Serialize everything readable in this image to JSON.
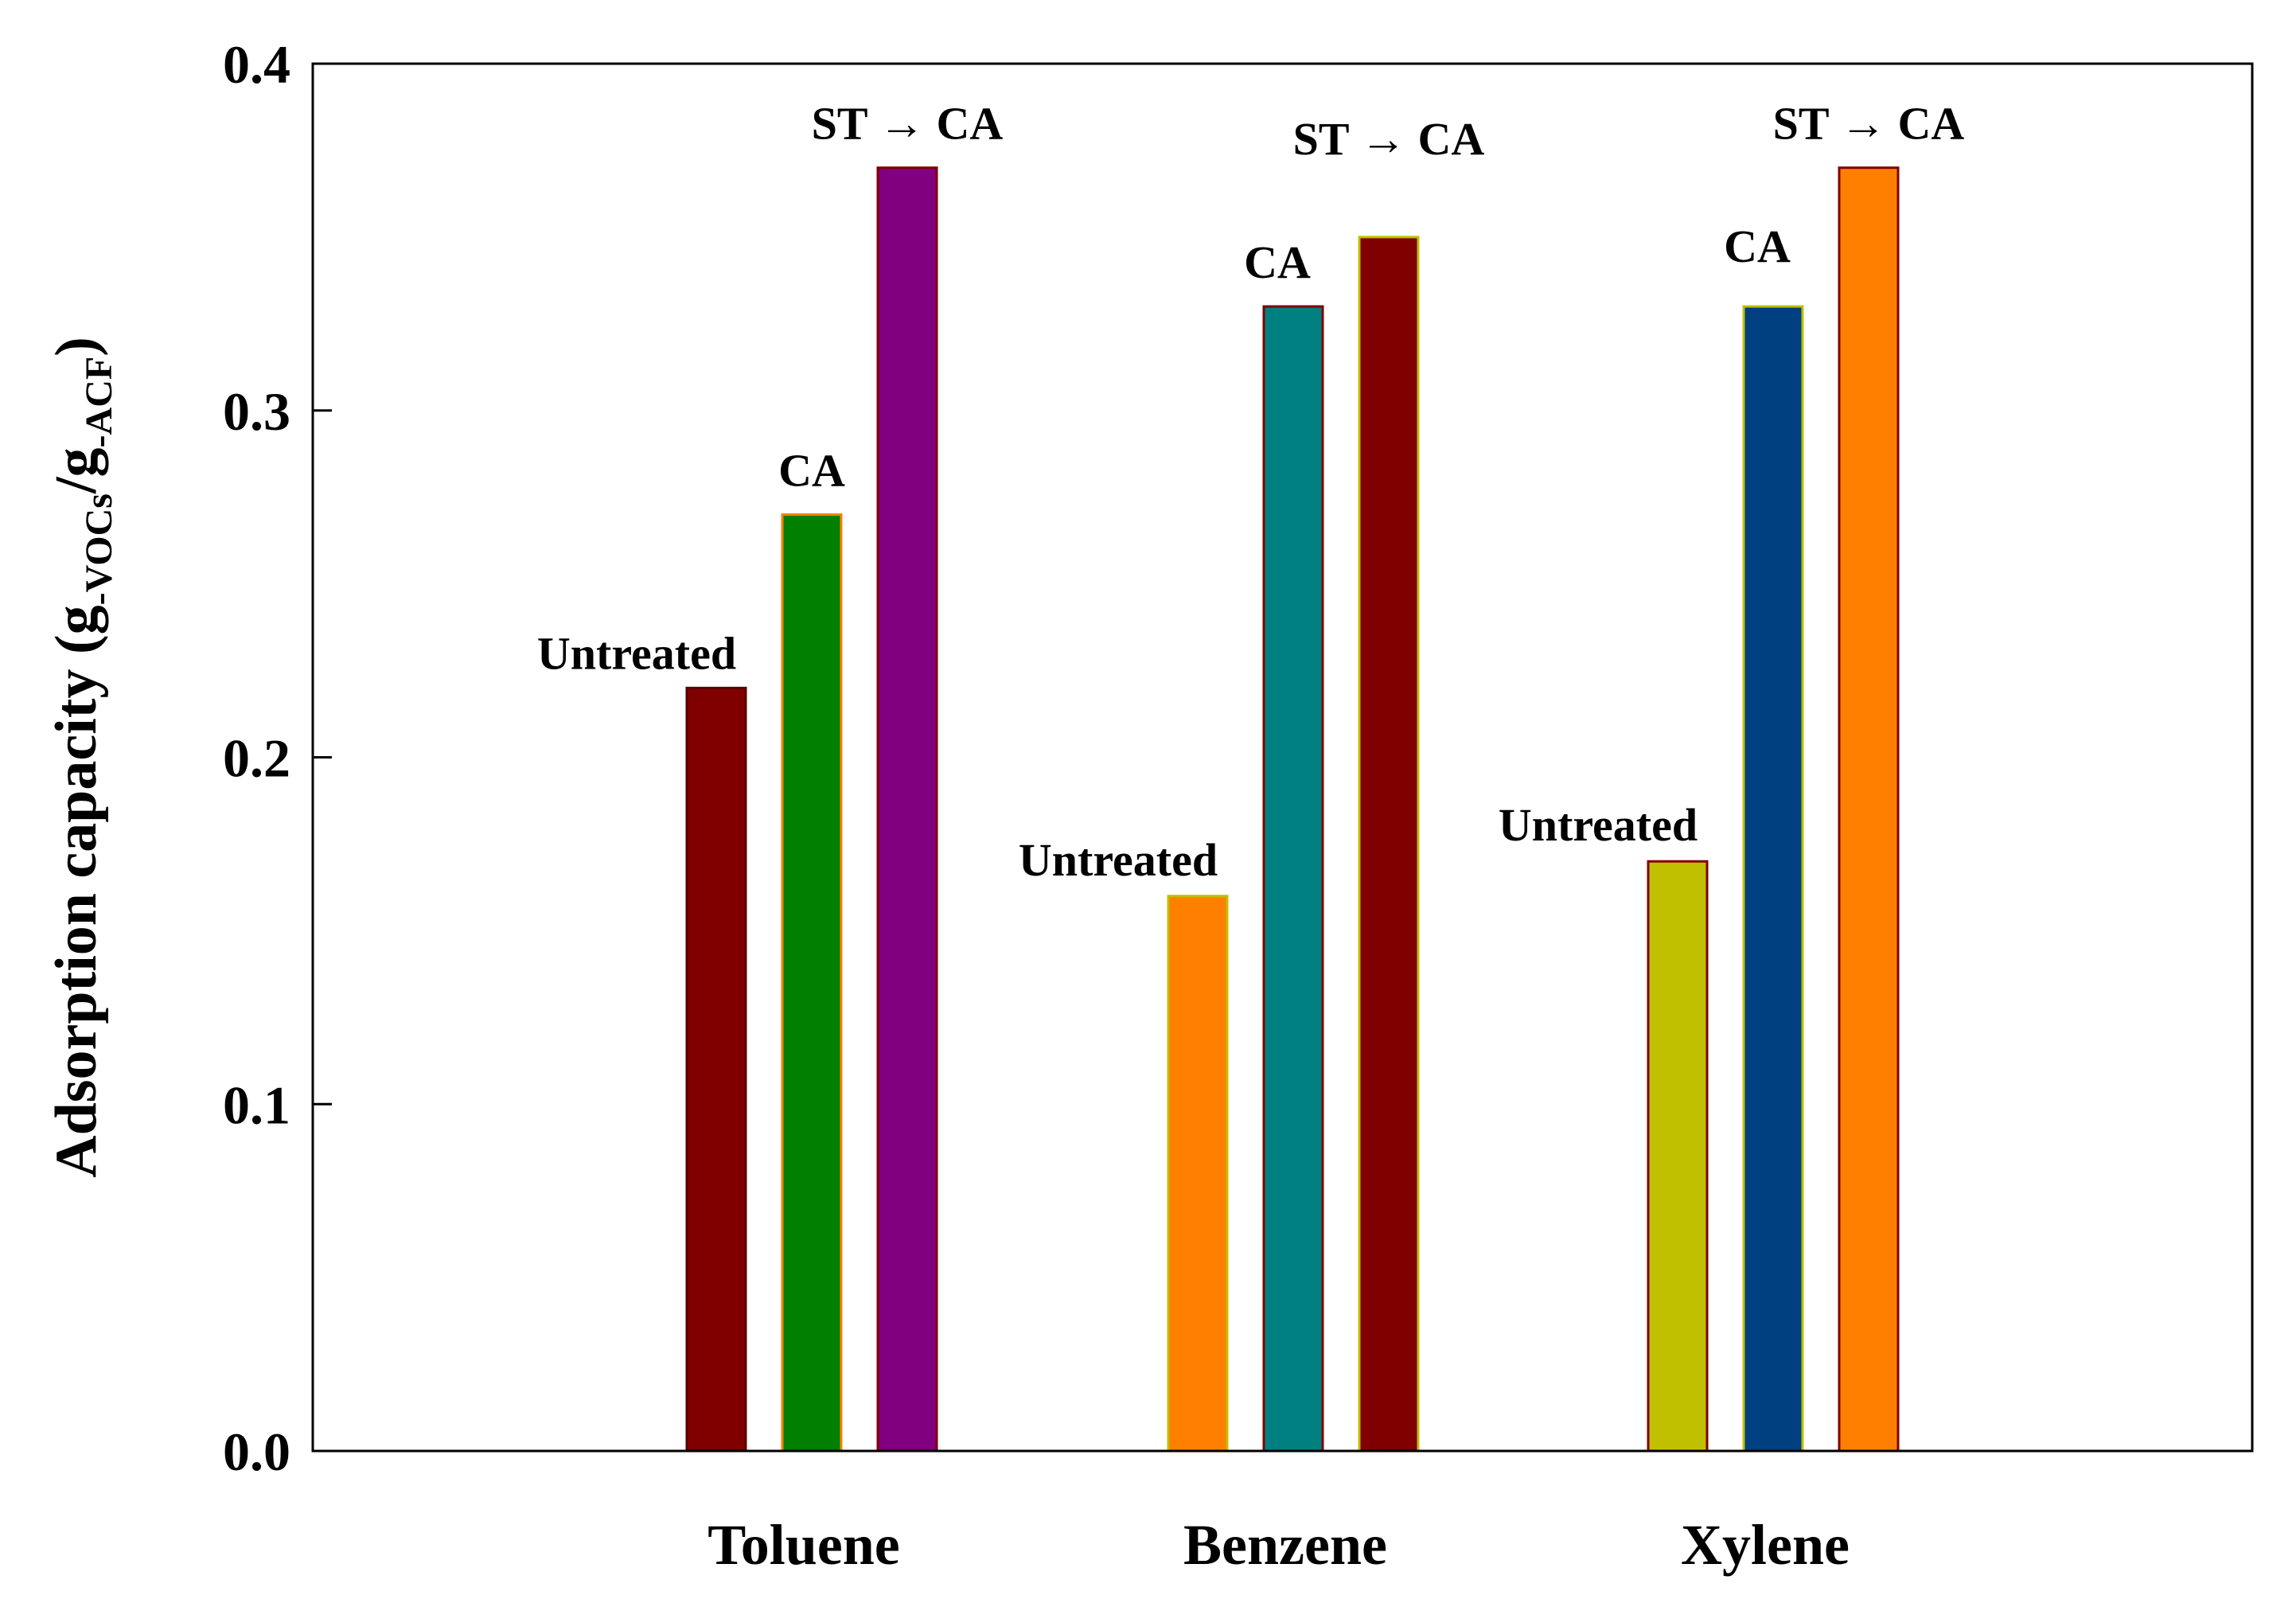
{
  "chart_data": {
    "type": "bar",
    "title": "",
    "xlabel": "",
    "ylabel": {
      "prefix": "Adsorption capacity (g",
      "sub1": "-VOCs",
      "mid": "/g",
      "sub2": "-ACF",
      "suffix": ")"
    },
    "ylim": [
      0,
      0.4
    ],
    "yticks": [
      0.0,
      0.1,
      0.2,
      0.3,
      0.4
    ],
    "ytick_labels": [
      "0.0",
      "0.1",
      "0.2",
      "0.3",
      "0.4"
    ],
    "grid": false,
    "legend": "none",
    "categories": [
      "Toluene",
      "Benzene",
      "Xylene"
    ],
    "groups": [
      {
        "category": "Toluene",
        "bars": [
          {
            "label": "Untreated",
            "value": 0.22,
            "color": "#800000",
            "edge": "#5a0000"
          },
          {
            "label": "CA",
            "value": 0.27,
            "color": "#007f00",
            "edge": "#ff8000"
          },
          {
            "label": "ST → CA",
            "value": 0.37,
            "color": "#800080",
            "edge": "#800000"
          }
        ]
      },
      {
        "category": "Benzene",
        "bars": [
          {
            "label": "Untreated",
            "value": 0.16,
            "color": "#ff8000",
            "edge": "#c0c000"
          },
          {
            "label": "CA",
            "value": 0.33,
            "color": "#008080",
            "edge": "#800000"
          },
          {
            "label": "ST → CA",
            "value": 0.35,
            "color": "#800000",
            "edge": "#c0c000"
          }
        ]
      },
      {
        "category": "Xylene",
        "bars": [
          {
            "label": "Untreated",
            "value": 0.17,
            "color": "#c0c000",
            "edge": "#800000"
          },
          {
            "label": "CA",
            "value": 0.33,
            "color": "#004080",
            "edge": "#c0c000"
          },
          {
            "label": "ST → CA",
            "value": 0.37,
            "color": "#ff8000",
            "edge": "#800000"
          }
        ]
      }
    ]
  }
}
